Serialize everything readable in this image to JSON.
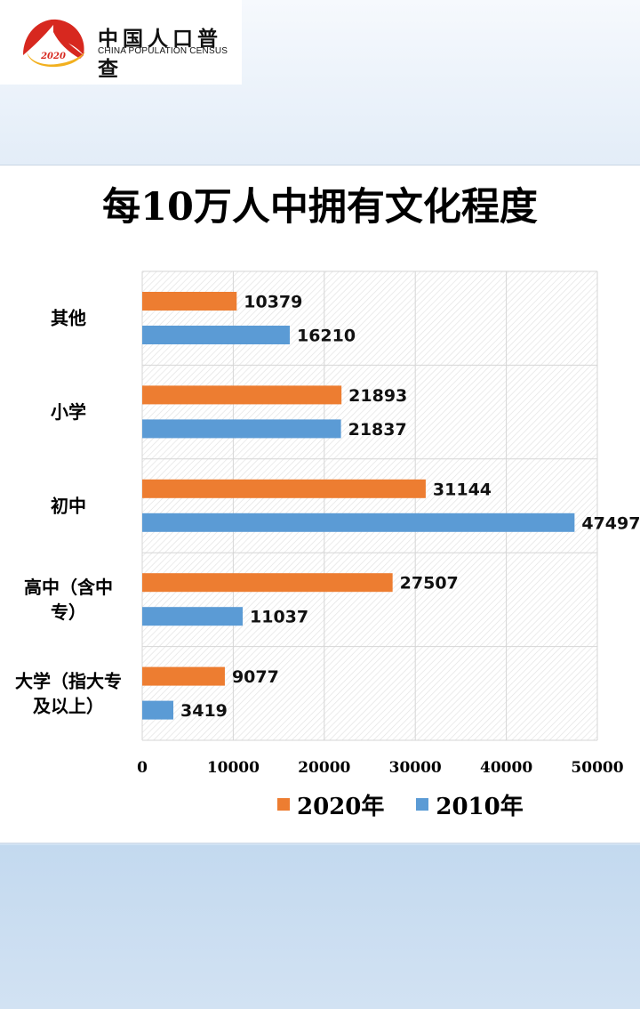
{
  "header": {
    "logo_year": "2020",
    "logo_cn": "中国人口普查",
    "logo_en": "CHINA POPULATION CENSUS"
  },
  "colors": {
    "series_2020": "#ed7d31",
    "series_2010": "#5b9bd5",
    "logo_red": "#d7281f",
    "logo_gold": "#f2b01e"
  },
  "chart_data": {
    "type": "bar",
    "orientation": "horizontal",
    "title": "每10万人中拥有文化程度",
    "xlabel": "",
    "ylabel": "",
    "xlim": [
      0,
      50000
    ],
    "x_ticks": [
      "0",
      "10000",
      "20000",
      "30000",
      "40000",
      "50000"
    ],
    "grid": true,
    "legend_position": "bottom",
    "categories": [
      [
        "其他"
      ],
      [
        "小学"
      ],
      [
        "初中"
      ],
      [
        "高中（含中",
        "专）"
      ],
      [
        "大学（指大专",
        "及以上）"
      ]
    ],
    "series": [
      {
        "name": "2020年",
        "values": [
          10379,
          21893,
          31144,
          27507,
          9077
        ]
      },
      {
        "name": "2010年",
        "values": [
          16210,
          21837,
          47497,
          11037,
          3419
        ]
      }
    ]
  }
}
